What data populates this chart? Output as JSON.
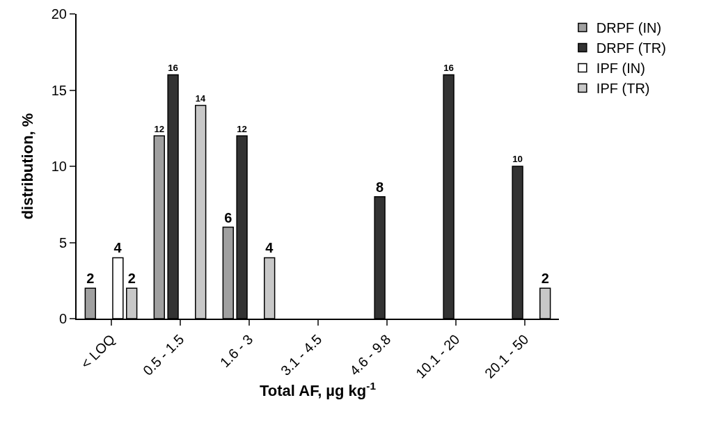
{
  "chart_data": {
    "type": "bar",
    "xlabel": "Total AF, µg kg$^{-1}$",
    "ylabel": "distribution, %",
    "categories": [
      "< LOQ",
      "0.5 - 1.5",
      "1.6 - 3",
      "3.1 - 4.5",
      "4.6 - 9.8",
      "10.1 - 20",
      "20.1 - 50"
    ],
    "series": [
      {
        "name": "DRPF (IN)",
        "color": "#a0a0a0",
        "values": [
          2,
          12,
          6,
          null,
          null,
          null,
          null
        ]
      },
      {
        "name": "DRPF (TR)",
        "color": "#333333",
        "values": [
          null,
          16,
          12,
          null,
          8,
          16,
          10
        ]
      },
      {
        "name": "IPF (IN)",
        "color": "#ffffff",
        "values": [
          4,
          null,
          null,
          null,
          null,
          null,
          null
        ]
      },
      {
        "name": "IPF (TR)",
        "color": "#c8c8c8",
        "values": [
          2,
          14,
          4,
          null,
          null,
          null,
          2
        ]
      }
    ],
    "ylim": [
      0,
      20
    ],
    "yticks": [
      0,
      5,
      10,
      15,
      20
    ],
    "grid": false,
    "legend": "top right",
    "data_labels": true
  }
}
